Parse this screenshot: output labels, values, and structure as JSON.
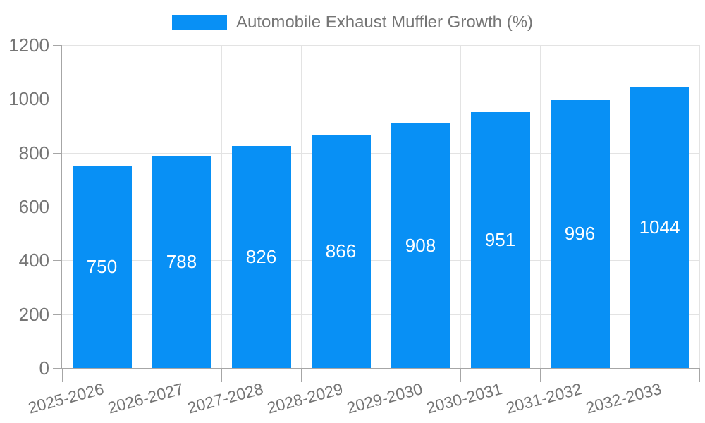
{
  "legend": {
    "label": "Automobile Exhaust Muffler Growth (%)",
    "swatch_color": "#0890f5"
  },
  "chart_data": {
    "type": "bar",
    "title": "Automobile Exhaust Muffler Growth (%)",
    "categories": [
      "2025-2026",
      "2026-2027",
      "2027-2028",
      "2028-2029",
      "2029-2030",
      "2030-2031",
      "2031-2032",
      "2032-2033"
    ],
    "values": [
      750,
      788,
      826,
      866,
      908,
      951,
      996,
      1044
    ],
    "xlabel": "",
    "ylabel": "",
    "ylim": [
      0,
      1200
    ],
    "yticks": [
      0,
      200,
      400,
      600,
      800,
      1000,
      1200
    ],
    "bar_color": "#0890f5",
    "value_label_color": "#ffffff",
    "axis_text_color": "#757575",
    "gridline_color": "#e3e3e3",
    "axis_line_color": "#a6a6a6",
    "grid": "on",
    "legend_position": "top-center",
    "xlabel_rotation_deg": -15,
    "value_label_position": "center-of-bar"
  }
}
